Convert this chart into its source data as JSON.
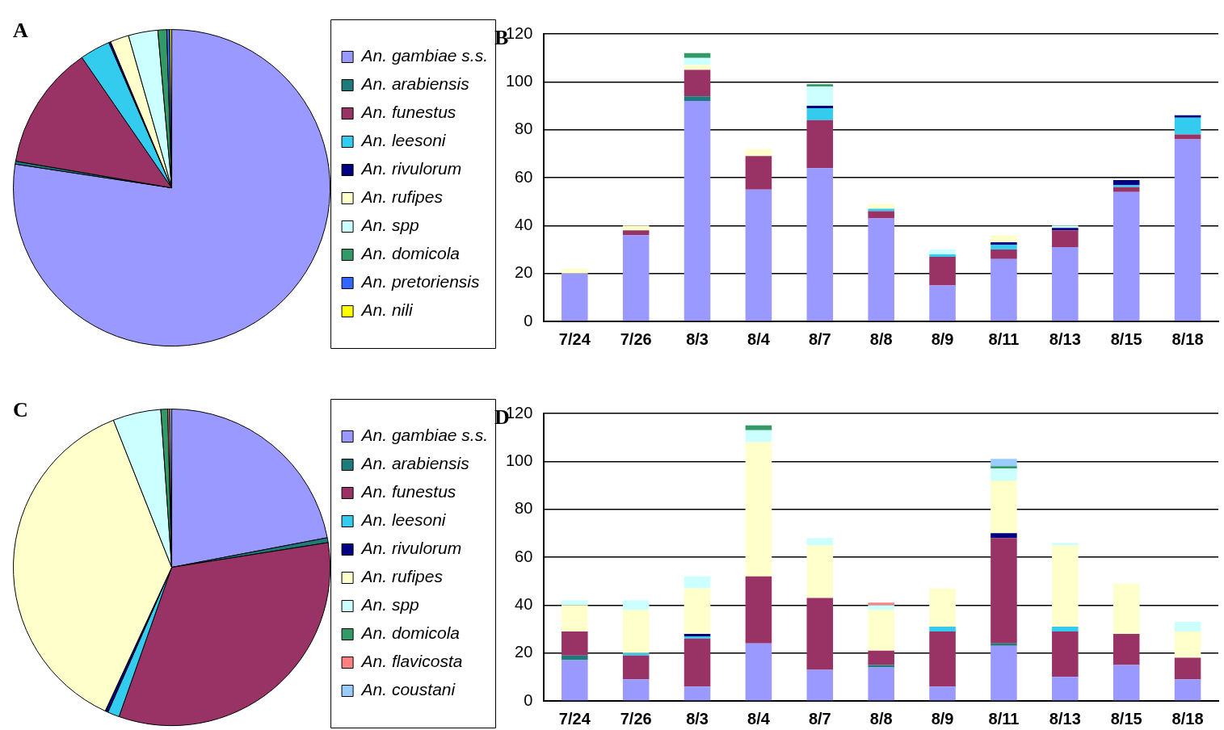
{
  "chart_data": [
    {
      "type": "pie",
      "title": "A",
      "legend": "right",
      "categories": [
        "An. gambiae s.s.",
        "An. arabiensis",
        "An. funestus",
        "An. leesoni",
        "An. rivulorum",
        "An. rufipes",
        "An. spp",
        "An. domicola",
        "An. pretoriensis",
        "An. nili"
      ],
      "values": [
        77.4,
        0.3,
        12.7,
        3.1,
        0.2,
        1.9,
        3.0,
        0.9,
        0.3,
        0.2
      ],
      "colors": [
        "#9999ff",
        "#1f7a7a",
        "#993366",
        "#33ccee",
        "#000080",
        "#ffffcc",
        "#ccffff",
        "#339966",
        "#3366ff",
        "#ffff00"
      ]
    },
    {
      "type": "bar",
      "title": "B",
      "stacked": true,
      "grid": "y",
      "categories": [
        "7/24",
        "7/26",
        "8/3",
        "8/4",
        "8/7",
        "8/8",
        "8/9",
        "8/11",
        "8/13",
        "8/15",
        "8/18"
      ],
      "ylim": [
        0,
        120
      ],
      "yticks": [
        0,
        20,
        40,
        60,
        80,
        100,
        120
      ],
      "series": [
        {
          "color": "#9999ff",
          "values": [
            20,
            36,
            92,
            55,
            64,
            43,
            15,
            26,
            31,
            54,
            76
          ]
        },
        {
          "color": "#1f7a7a",
          "values": [
            0,
            0,
            2,
            0,
            0,
            0,
            0,
            0,
            0,
            0,
            0
          ]
        },
        {
          "color": "#993366",
          "values": [
            0,
            2,
            11,
            14,
            20,
            3,
            12,
            4,
            7,
            2,
            2
          ]
        },
        {
          "color": "#33ccee",
          "values": [
            0,
            0,
            0,
            0,
            5,
            1,
            1,
            2,
            0,
            1,
            7
          ]
        },
        {
          "color": "#000080",
          "values": [
            0,
            0,
            0,
            0,
            1,
            0,
            0,
            1,
            1,
            2,
            1
          ]
        },
        {
          "color": "#ffffcc",
          "values": [
            2,
            2,
            2,
            3,
            0,
            2,
            0,
            3,
            0,
            0,
            0
          ]
        },
        {
          "color": "#ccffff",
          "values": [
            0,
            0,
            3,
            0,
            8,
            0,
            2,
            0,
            1,
            0,
            0
          ]
        },
        {
          "color": "#339966",
          "values": [
            0,
            0,
            2,
            0,
            1,
            0,
            0,
            0,
            0,
            0,
            0
          ]
        },
        {
          "color": "#3366ff",
          "values": [
            0,
            0,
            0,
            0,
            0,
            0,
            0,
            0,
            0,
            0,
            0
          ]
        },
        {
          "color": "#ffff00",
          "values": [
            0,
            0,
            0,
            0,
            0,
            0,
            0,
            0,
            0,
            0,
            0
          ]
        }
      ]
    },
    {
      "type": "pie",
      "title": "C",
      "legend": "right",
      "categories": [
        "An. gambiae s.s.",
        "An. arabiensis",
        "An. funestus",
        "An. leesoni",
        "An. rivulorum",
        "An. rufipes",
        "An. spp",
        "An. domicola",
        "An. flavicosta",
        "An. coustani"
      ],
      "values": [
        22.0,
        0.5,
        32.9,
        1.2,
        0.3,
        37.1,
        4.9,
        0.7,
        0.2,
        0.2
      ],
      "colors": [
        "#9999ff",
        "#1f7a7a",
        "#993366",
        "#33ccee",
        "#000080",
        "#ffffcc",
        "#ccffff",
        "#339966",
        "#ff8080",
        "#99ccff"
      ]
    },
    {
      "type": "bar",
      "title": "D",
      "stacked": true,
      "grid": "y",
      "categories": [
        "7/24",
        "7/26",
        "8/3",
        "8/4",
        "8/7",
        "8/8",
        "8/9",
        "8/11",
        "8/13",
        "8/15",
        "8/18"
      ],
      "ylim": [
        0,
        120
      ],
      "yticks": [
        0,
        20,
        40,
        60,
        80,
        100,
        120
      ],
      "series": [
        {
          "color": "#9999ff",
          "values": [
            17,
            9,
            6,
            24,
            13,
            14,
            6,
            23,
            10,
            15,
            9
          ]
        },
        {
          "color": "#1f7a7a",
          "values": [
            2,
            0,
            0,
            0,
            0,
            1,
            0,
            1,
            0,
            0,
            0
          ]
        },
        {
          "color": "#993366",
          "values": [
            10,
            10,
            20,
            28,
            30,
            6,
            23,
            44,
            19,
            13,
            9
          ]
        },
        {
          "color": "#33ccee",
          "values": [
            0,
            1,
            1,
            0,
            0,
            0,
            2,
            0,
            2,
            0,
            0
          ]
        },
        {
          "color": "#000080",
          "values": [
            0,
            0,
            1,
            0,
            0,
            0,
            0,
            2,
            0,
            0,
            0
          ]
        },
        {
          "color": "#ffffcc",
          "values": [
            11,
            18,
            19,
            56,
            22,
            17,
            16,
            22,
            34,
            21,
            11
          ]
        },
        {
          "color": "#ccffff",
          "values": [
            2,
            4,
            5,
            5,
            3,
            2,
            0,
            5,
            1,
            0,
            4
          ]
        },
        {
          "color": "#339966",
          "values": [
            0,
            0,
            0,
            2,
            0,
            0,
            0,
            1,
            0,
            0,
            0
          ]
        },
        {
          "color": "#ff8080",
          "values": [
            0,
            0,
            0,
            0,
            0,
            1,
            0,
            0,
            0,
            0,
            0
          ]
        },
        {
          "color": "#99ccff",
          "values": [
            0,
            0,
            0,
            0,
            0,
            0,
            0,
            3,
            0,
            0,
            0
          ]
        }
      ]
    }
  ]
}
